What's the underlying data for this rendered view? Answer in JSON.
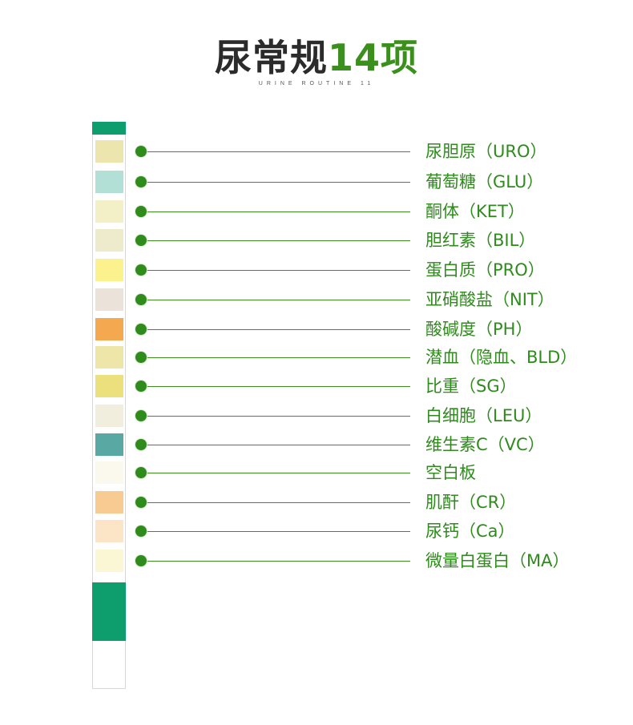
{
  "header": {
    "title_part1": "尿常规",
    "title_part2": "14项",
    "subtitle": "URINE ROUTINE 11"
  },
  "colors": {
    "title_dark": "#2b2b2b",
    "title_green": "#3a8f1d",
    "strip_cap": "#0e9e6e",
    "line": "#3a8f1d",
    "dot": "#2e8b1c",
    "label": "#2e8b1c"
  },
  "items": [
    {
      "label": "尿胆原（URO）",
      "pad_color": "#ece6ae"
    },
    {
      "label": "葡萄糖（GLU）",
      "pad_color": "#b2e0d6"
    },
    {
      "label": "酮体（KET）",
      "pad_color": "#f3efc6"
    },
    {
      "label": "胆红素（BIL）",
      "pad_color": "#eeeacc"
    },
    {
      "label": "蛋白质（PRO）",
      "pad_color": "#fbf28e"
    },
    {
      "label": "亚硝酸盐（NIT）",
      "pad_color": "#ebe3d9"
    },
    {
      "label": "酸碱度（PH）",
      "pad_color": "#f4a84f"
    },
    {
      "label": "潜血（隐血、BLD）",
      "pad_color": "#eee6a8"
    },
    {
      "label": "比重（SG）",
      "pad_color": "#ebe07c"
    },
    {
      "label": "白细胞（LEU）",
      "pad_color": "#f2eedd"
    },
    {
      "label": "维生素C（VC）",
      "pad_color": "#5aa8a4"
    },
    {
      "label": "空白板",
      "pad_color": "#fbf8ee"
    },
    {
      "label": "肌酐（CR）",
      "pad_color": "#f8cb92"
    },
    {
      "label": "尿钙（Ca）",
      "pad_color": "#fbe5c6"
    },
    {
      "label": "微量白蛋白（MA）",
      "pad_color": "#fbf7d4"
    }
  ]
}
